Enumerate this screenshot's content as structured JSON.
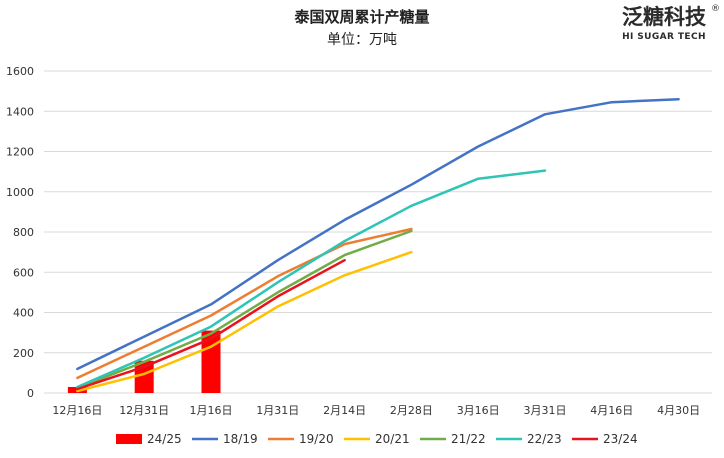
{
  "chart_data": {
    "type": "line",
    "title": "泰国双周累计产糖量",
    "subtitle": "单位：万吨",
    "categories": [
      "12月16日",
      "12月31日",
      "1月16日",
      "1月31日",
      "2月14日",
      "2月28日",
      "3月16日",
      "3月31日",
      "4月16日",
      "4月30日"
    ],
    "ylim": [
      0,
      1600
    ],
    "yticks": [
      0,
      200,
      400,
      600,
      800,
      1000,
      1200,
      1400,
      1600
    ],
    "grid": true,
    "legend": "bottom",
    "bar_series": {
      "name": "24/25",
      "color": "#ff0000",
      "values": [
        30,
        160,
        310,
        null,
        null,
        null,
        null,
        null,
        null,
        null
      ]
    },
    "series": [
      {
        "name": "18/19",
        "color": "#4472c4",
        "values": [
          120,
          280,
          440,
          660,
          860,
          1035,
          1225,
          1385,
          1445,
          1460
        ]
      },
      {
        "name": "19/20",
        "color": "#ed7d31",
        "values": [
          75,
          230,
          385,
          580,
          740,
          815,
          null,
          null,
          null,
          null
        ]
      },
      {
        "name": "20/21",
        "color": "#ffc000",
        "values": [
          10,
          95,
          230,
          430,
          585,
          700,
          null,
          null,
          null,
          null
        ]
      },
      {
        "name": "21/22",
        "color": "#70ad47",
        "values": [
          25,
          155,
          295,
          500,
          685,
          805,
          null,
          null,
          null,
          null
        ]
      },
      {
        "name": "22/23",
        "color": "#2ec4b6",
        "values": [
          30,
          175,
          330,
          550,
          755,
          930,
          1065,
          1105,
          null,
          null
        ]
      },
      {
        "name": "23/24",
        "color": "#e8131f",
        "values": [
          20,
          130,
          270,
          480,
          660,
          null,
          null,
          null,
          null,
          null
        ]
      }
    ]
  },
  "logo": {
    "name": "泛糖科技",
    "registered": "®",
    "tagline": "HI SUGAR TECH"
  }
}
